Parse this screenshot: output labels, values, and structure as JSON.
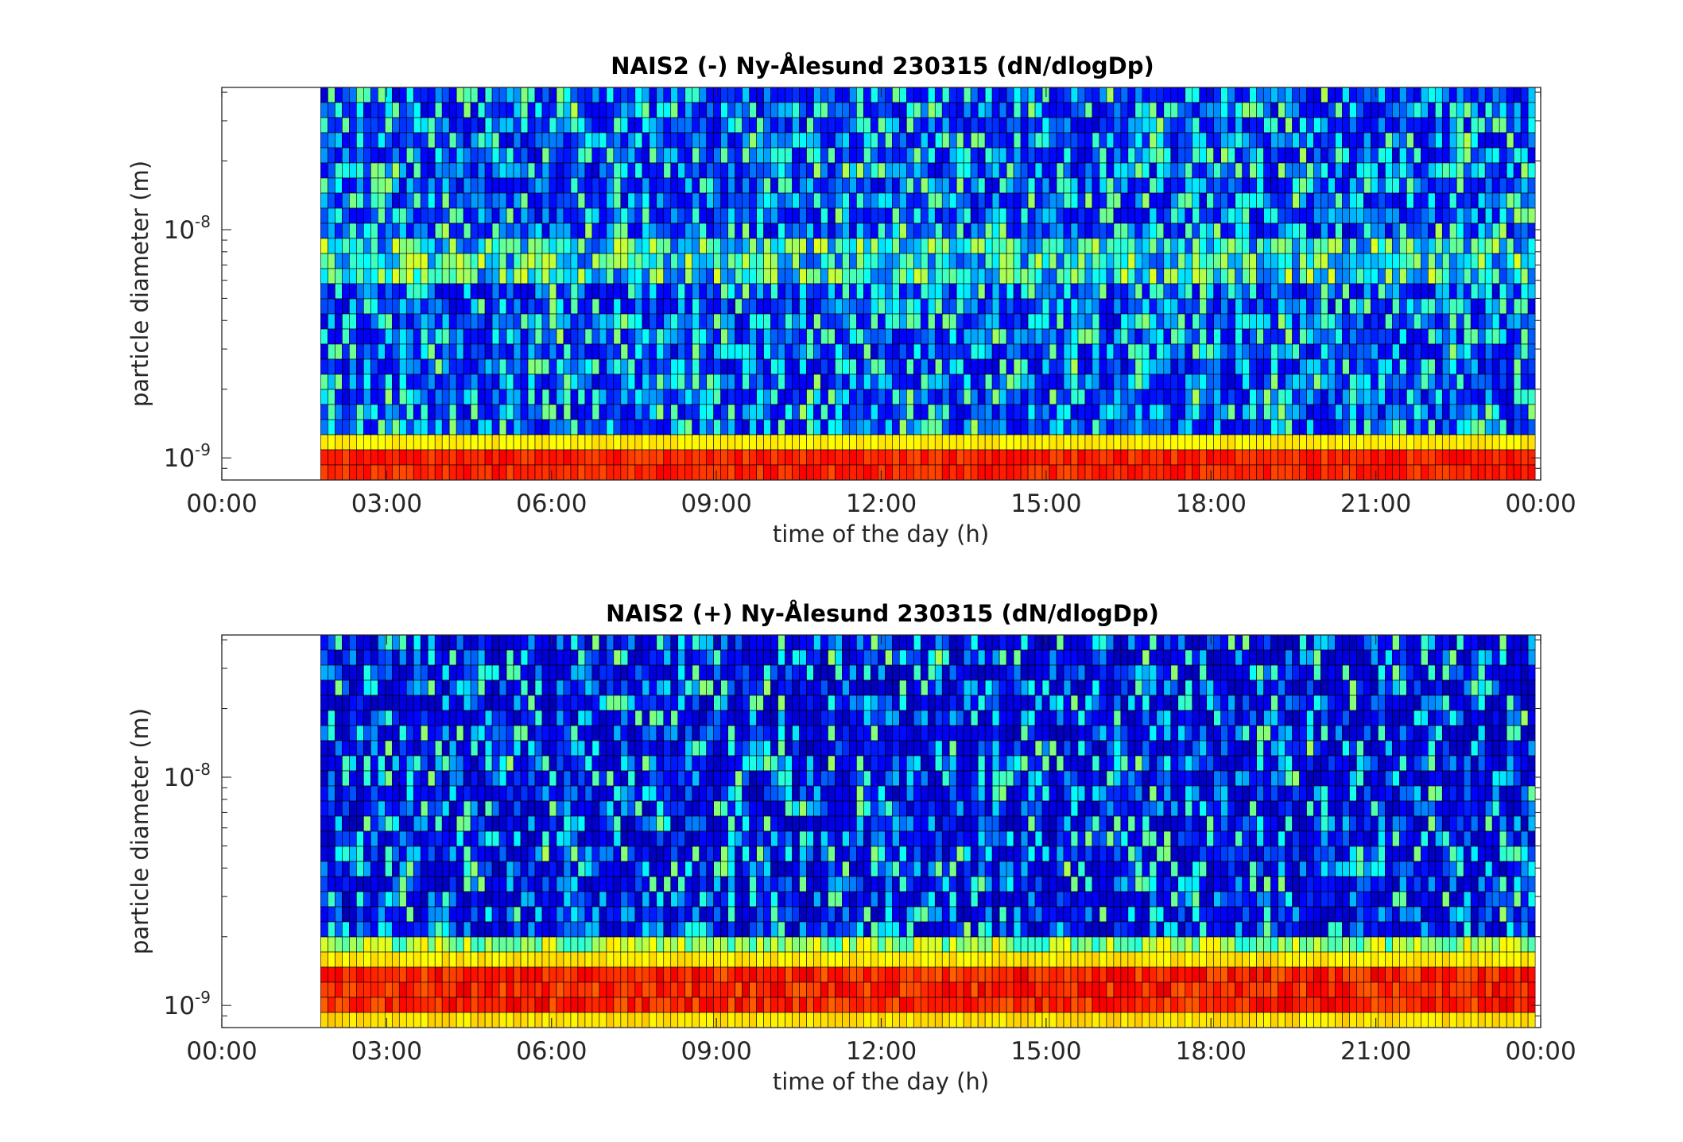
{
  "chart_data": [
    {
      "type": "heatmap",
      "title": "NAIS2 (-) Ny-Ålesund 230315 (dN/dlogDp)",
      "xlabel": "time of the day (h)",
      "ylabel": "particle diameter (m)",
      "x_tick_labels": [
        "00:00",
        "03:00",
        "06:00",
        "09:00",
        "12:00",
        "15:00",
        "18:00",
        "21:00",
        "00:00"
      ],
      "x_ticks_hours": [
        0,
        3,
        6,
        9,
        12,
        15,
        18,
        21,
        24
      ],
      "xlim_hours": [
        0,
        24
      ],
      "y_scale": "log",
      "y_ticks": [
        {
          "base": "10",
          "exp": "-9",
          "value": 1e-09
        },
        {
          "base": "10",
          "exp": "-8",
          "value": 1e-08
        }
      ],
      "ylim_m": [
        8e-10,
        4.2e-08
      ],
      "data_start_hour": 1.8,
      "colormap": "jet",
      "pattern": "orange-red band at the smallest diameters (~1 nm) with a yellow row above it; mostly blue/cyan noise at larger sizes with scattered yellow near 6-8 nm"
    },
    {
      "type": "heatmap",
      "title": "NAIS2 (+) Ny-Ålesund 230315 (dN/dlogDp)",
      "xlabel": "time of the day (h)",
      "ylabel": "particle diameter (m)",
      "x_tick_labels": [
        "00:00",
        "03:00",
        "06:00",
        "09:00",
        "12:00",
        "15:00",
        "18:00",
        "21:00",
        "00:00"
      ],
      "x_ticks_hours": [
        0,
        3,
        6,
        9,
        12,
        15,
        18,
        21,
        24
      ],
      "xlim_hours": [
        0,
        24
      ],
      "y_scale": "log",
      "y_ticks": [
        {
          "base": "10",
          "exp": "-9",
          "value": 1e-09
        },
        {
          "base": "10",
          "exp": "-8",
          "value": 1e-08
        }
      ],
      "ylim_m": [
        8e-10,
        4.2e-08
      ],
      "data_start_hour": 1.8,
      "colormap": "jet",
      "pattern": "wide orange-red band at the smallest diameters (~0.8-1.5 nm) bordered by yellow rows; mostly dark blue noise at larger sizes"
    }
  ],
  "colors": {
    "background": "#ffffff",
    "axis": "#262626",
    "cell_border": "#000000",
    "colormap_jet": [
      "#00008f",
      "#0000ff",
      "#0080ff",
      "#00ffff",
      "#80ff80",
      "#ffff00",
      "#ff8000",
      "#ff0000",
      "#800000"
    ]
  }
}
